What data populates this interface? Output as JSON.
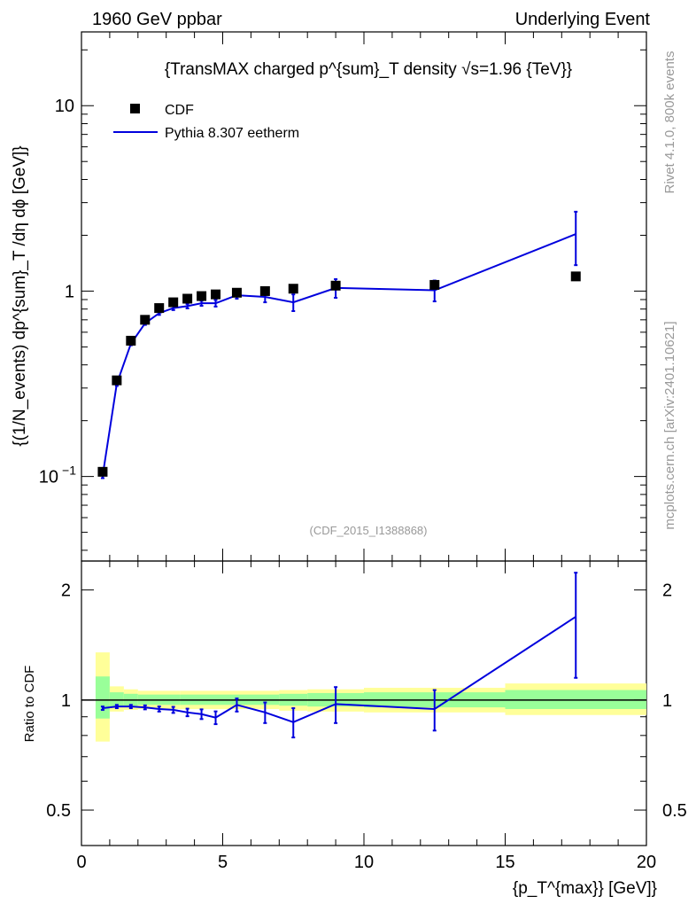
{
  "header": {
    "left": "1960 GeV ppbar",
    "right": "Underlying Event"
  },
  "side_labels": {
    "rivet": "Rivet 4.1.0,  800k events",
    "mcplots": "mcplots.cern.ch [arXiv:2401.10621]"
  },
  "chart_data": [
    {
      "type": "scatter",
      "title": "{TransMAX charged p^{sum}_T density √s=1.96 {TeV}}",
      "ylabel": "{(1/N_events) dp^{sum}_T /dη dϕ [GeV]}",
      "xlabel": "",
      "xlim": [
        0,
        20
      ],
      "ylim": [
        0.035,
        25
      ],
      "yscale": "log",
      "y_ticks": [
        {
          "value": 0.1,
          "label": "10^-1"
        },
        {
          "value": 1,
          "label": "1"
        },
        {
          "value": 10,
          "label": "10"
        }
      ],
      "watermark": "(CDF_2015_I1388868)",
      "legend": [
        {
          "name": "CDF",
          "style": "square-marker",
          "color": "#000000"
        },
        {
          "name": "Pythia 8.307 eetherm",
          "style": "line",
          "color": "#0000dd"
        }
      ],
      "series": [
        {
          "name": "CDF",
          "x": [
            0.75,
            1.25,
            1.75,
            2.25,
            2.75,
            3.25,
            3.75,
            4.25,
            4.75,
            5.5,
            6.5,
            7.5,
            9.0,
            12.5,
            17.5
          ],
          "y": [
            0.106,
            0.33,
            0.54,
            0.7,
            0.81,
            0.87,
            0.91,
            0.94,
            0.96,
            0.98,
            1.0,
            1.03,
            1.07,
            1.08,
            1.2
          ]
        },
        {
          "name": "Pythia 8.307 eetherm",
          "x": [
            0.75,
            1.25,
            1.75,
            2.25,
            2.75,
            3.25,
            3.75,
            4.25,
            4.75,
            5.5,
            6.5,
            7.5,
            9.0,
            12.5,
            17.5
          ],
          "y": [
            0.101,
            0.316,
            0.52,
            0.67,
            0.76,
            0.81,
            0.83,
            0.86,
            0.86,
            0.95,
            0.93,
            0.87,
            1.04,
            1.01,
            2.03
          ],
          "err": [
            0.003,
            0.008,
            0.01,
            0.013,
            0.016,
            0.02,
            0.023,
            0.027,
            0.035,
            0.04,
            0.06,
            0.09,
            0.12,
            0.13,
            0.65
          ],
          "xerr": [
            0.25,
            0.25,
            0.25,
            0.25,
            0.25,
            0.25,
            0.25,
            0.25,
            0.25,
            0.5,
            0.5,
            0.5,
            1.0,
            2.5,
            2.5
          ]
        }
      ],
      "color": "#0000dd"
    },
    {
      "type": "line",
      "title": "",
      "ylabel": "Ratio to CDF",
      "xlabel": "{p_T^{max}} [GeV]}",
      "xlim": [
        0,
        20
      ],
      "ylim": [
        0.4,
        2.4
      ],
      "yscale": "log",
      "x_ticks": [
        0,
        5,
        10,
        15,
        20
      ],
      "x_tick_labels": [
        "0",
        "5",
        "10",
        "15",
        "20"
      ],
      "y_ticks": [
        0.5,
        1,
        2
      ],
      "y_tick_labels": [
        "0.5",
        "1",
        "2"
      ],
      "bands": [
        {
          "edges": [
            0.5,
            1.0
          ],
          "green": [
            0.89,
            1.16
          ],
          "yellow": [
            0.77,
            1.35
          ]
        },
        {
          "edges": [
            1.0,
            1.5
          ],
          "green": [
            0.96,
            1.05
          ],
          "yellow": [
            0.93,
            1.09
          ]
        },
        {
          "edges": [
            1.5,
            2.0
          ],
          "green": [
            0.965,
            1.04
          ],
          "yellow": [
            0.94,
            1.07
          ]
        },
        {
          "edges": [
            2.0,
            3.5
          ],
          "green": [
            0.97,
            1.035
          ],
          "yellow": [
            0.945,
            1.06
          ]
        },
        {
          "edges": [
            3.5,
            7.0
          ],
          "green": [
            0.97,
            1.035
          ],
          "yellow": [
            0.945,
            1.06
          ]
        },
        {
          "edges": [
            7.0,
            8.0
          ],
          "green": [
            0.965,
            1.04
          ],
          "yellow": [
            0.935,
            1.065
          ]
        },
        {
          "edges": [
            8.0,
            10.0
          ],
          "green": [
            0.96,
            1.045
          ],
          "yellow": [
            0.93,
            1.07
          ]
        },
        {
          "edges": [
            10.0,
            15.0
          ],
          "green": [
            0.955,
            1.05
          ],
          "yellow": [
            0.925,
            1.08
          ]
        },
        {
          "edges": [
            15.0,
            20.0
          ],
          "green": [
            0.945,
            1.065
          ],
          "yellow": [
            0.91,
            1.11
          ]
        }
      ],
      "series": [
        {
          "name": "Pythia 8.307 eetherm / CDF",
          "x": [
            0.75,
            1.25,
            1.75,
            2.25,
            2.75,
            3.25,
            3.75,
            4.25,
            4.75,
            5.5,
            6.5,
            7.5,
            9.0,
            12.5,
            17.5
          ],
          "y": [
            0.95,
            0.96,
            0.96,
            0.955,
            0.945,
            0.94,
            0.925,
            0.915,
            0.895,
            0.97,
            0.925,
            0.87,
            0.975,
            0.945,
            1.69
          ],
          "err": [
            0.01,
            0.01,
            0.01,
            0.012,
            0.015,
            0.018,
            0.022,
            0.028,
            0.036,
            0.04,
            0.06,
            0.08,
            0.11,
            0.12,
            0.54
          ],
          "xerr": [
            0.25,
            0.25,
            0.25,
            0.25,
            0.25,
            0.25,
            0.25,
            0.25,
            0.25,
            0.5,
            0.5,
            0.5,
            1.0,
            2.5,
            2.5
          ]
        }
      ]
    }
  ]
}
